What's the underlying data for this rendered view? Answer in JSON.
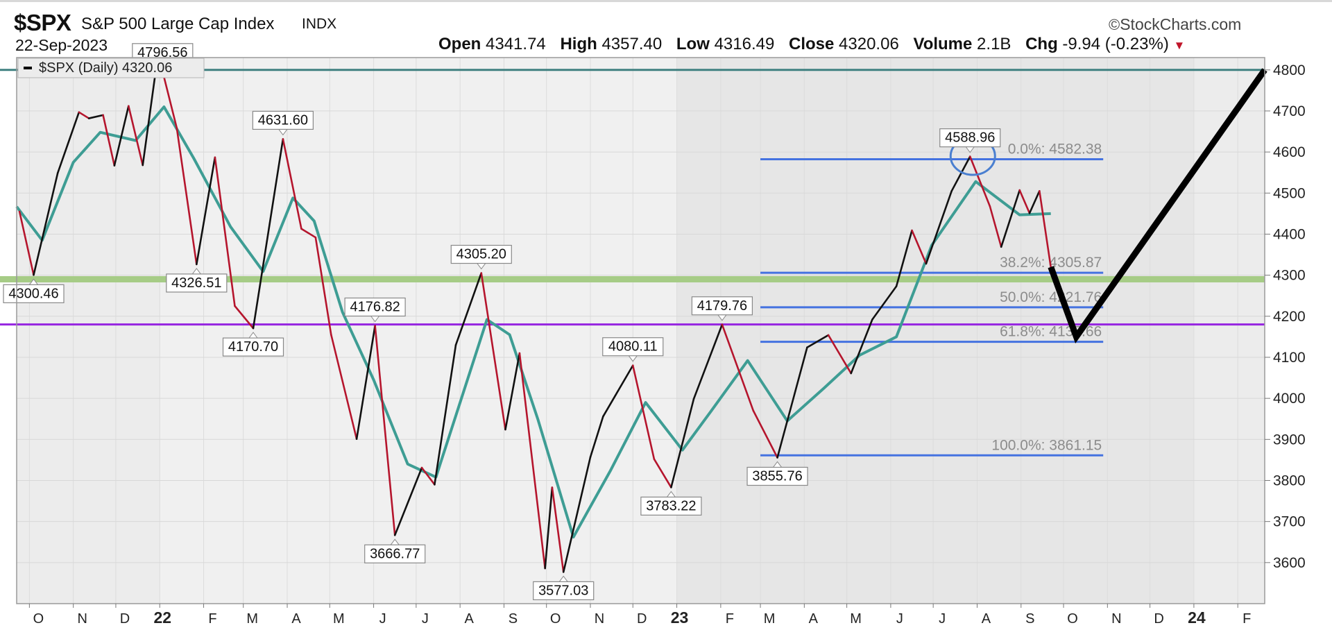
{
  "header": {
    "symbol": "$SPX",
    "name": "S&P 500 Large Cap Index",
    "exchange": "INDX",
    "date": "22-Sep-2023",
    "brand": "StockCharts.com",
    "brand_symbol": "©",
    "open_label": "Open",
    "open": "4341.74",
    "high_label": "High",
    "high": "4357.40",
    "low_label": "Low",
    "low": "4316.49",
    "close_label": "Close",
    "close": "4320.06",
    "volume_label": "Volume",
    "volume": "2.1B",
    "chg_label": "Chg",
    "chg": "-9.94 (-0.23%)",
    "chg_arrow": "▼"
  },
  "chart_data": {
    "type": "line",
    "legend": {
      "text": "$SPX (Daily) 4320.06",
      "placement": "top-left"
    },
    "y_axis": {
      "side": "right",
      "ticks": [
        3600,
        3700,
        3800,
        3900,
        4000,
        4100,
        4200,
        4300,
        4400,
        4500,
        4600,
        4700,
        4800
      ],
      "range": [
        3500,
        4830
      ]
    },
    "x_axis": {
      "ticks": [
        "O",
        "N",
        "D",
        "22",
        "F",
        "M",
        "A",
        "M",
        "J",
        "J",
        "A",
        "S",
        "O",
        "N",
        "D",
        "23",
        "F",
        "M",
        "A",
        "M",
        "J",
        "J",
        "A",
        "S",
        "O",
        "N",
        "D",
        "24",
        "F"
      ],
      "year_ticks": [
        "22",
        "23",
        "24"
      ],
      "range": [
        "2021-09-22",
        "2024-02-20"
      ]
    },
    "grid": true,
    "series": [
      {
        "name": "$SPX (Daily)",
        "color_up": "#111111",
        "color_down": "#b5152d",
        "points": [
          [
            "2021-09-24",
            4455
          ],
          [
            "2021-10-04",
            4300.46
          ],
          [
            "2021-10-21",
            4549
          ],
          [
            "2021-11-05",
            4697
          ],
          [
            "2021-11-12",
            4682
          ],
          [
            "2021-11-22",
            4690
          ],
          [
            "2021-11-30",
            4567
          ],
          [
            "2021-12-10",
            4712
          ],
          [
            "2021-12-20",
            4568
          ],
          [
            "2021-12-29",
            4793
          ],
          [
            "2022-01-03",
            4796.56
          ],
          [
            "2022-01-13",
            4659
          ],
          [
            "2022-01-27",
            4326.51
          ],
          [
            "2022-02-09",
            4587
          ],
          [
            "2022-02-23",
            4225
          ],
          [
            "2022-03-08",
            4170.7
          ],
          [
            "2022-03-29",
            4631.6
          ],
          [
            "2022-04-11",
            4413
          ],
          [
            "2022-04-21",
            4392
          ],
          [
            "2022-05-02",
            4155
          ],
          [
            "2022-05-20",
            3901
          ],
          [
            "2022-06-02",
            4176.82
          ],
          [
            "2022-06-16",
            3666.77
          ],
          [
            "2022-07-05",
            3831
          ],
          [
            "2022-07-14",
            3790
          ],
          [
            "2022-07-29",
            4130
          ],
          [
            "2022-08-16",
            4305.2
          ],
          [
            "2022-09-02",
            3924
          ],
          [
            "2022-09-12",
            4110
          ],
          [
            "2022-09-30",
            3586
          ],
          [
            "2022-10-05",
            3783
          ],
          [
            "2022-10-13",
            3577.03
          ],
          [
            "2022-11-01",
            3857
          ],
          [
            "2022-11-10",
            3956
          ],
          [
            "2022-12-01",
            4080.11
          ],
          [
            "2022-12-16",
            3852
          ],
          [
            "2022-12-28",
            3783.22
          ],
          [
            "2023-01-13",
            3999
          ],
          [
            "2023-02-02",
            4179.76
          ],
          [
            "2023-02-24",
            3970
          ],
          [
            "2023-03-13",
            3855.76
          ],
          [
            "2023-04-03",
            4124
          ],
          [
            "2023-04-18",
            4154
          ],
          [
            "2023-05-04",
            4061
          ],
          [
            "2023-05-19",
            4192
          ],
          [
            "2023-06-05",
            4273
          ],
          [
            "2023-06-16",
            4409
          ],
          [
            "2023-06-26",
            4328
          ],
          [
            "2023-07-14",
            4505
          ],
          [
            "2023-07-27",
            4588.96
          ],
          [
            "2023-08-10",
            4468
          ],
          [
            "2023-08-18",
            4369
          ],
          [
            "2023-08-31",
            4507
          ],
          [
            "2023-09-07",
            4451
          ],
          [
            "2023-09-14",
            4505
          ],
          [
            "2023-09-22",
            4320.06
          ]
        ]
      },
      {
        "name": "Moving Average",
        "color": "#3e9d94",
        "points": [
          [
            "2021-09-22",
            4467
          ],
          [
            "2021-10-10",
            4385
          ],
          [
            "2021-11-01",
            4575
          ],
          [
            "2021-11-20",
            4648
          ],
          [
            "2021-12-15",
            4628
          ],
          [
            "2022-01-04",
            4710
          ],
          [
            "2022-01-25",
            4585
          ],
          [
            "2022-02-20",
            4418
          ],
          [
            "2022-03-15",
            4309
          ],
          [
            "2022-04-05",
            4488
          ],
          [
            "2022-04-20",
            4432
          ],
          [
            "2022-05-10",
            4210
          ],
          [
            "2022-06-01",
            4045
          ],
          [
            "2022-06-25",
            3840
          ],
          [
            "2022-07-15",
            3808
          ],
          [
            "2022-08-20",
            4192
          ],
          [
            "2022-09-05",
            4155
          ],
          [
            "2022-09-25",
            3948
          ],
          [
            "2022-10-20",
            3662
          ],
          [
            "2022-11-15",
            3823
          ],
          [
            "2022-12-10",
            3990
          ],
          [
            "2023-01-05",
            3874
          ],
          [
            "2023-01-25",
            3968
          ],
          [
            "2023-02-20",
            4092
          ],
          [
            "2023-03-20",
            3945
          ],
          [
            "2023-04-15",
            4025
          ],
          [
            "2023-05-10",
            4105
          ],
          [
            "2023-06-05",
            4150
          ],
          [
            "2023-06-30",
            4373
          ],
          [
            "2023-07-31",
            4528
          ],
          [
            "2023-08-31",
            4447
          ],
          [
            "2023-09-22",
            4450
          ]
        ]
      },
      {
        "name": "Projection",
        "color": "#000000",
        "points": [
          [
            "2023-09-22",
            4320
          ],
          [
            "2023-10-10",
            4150
          ],
          [
            "2024-02-20",
            4800
          ]
        ]
      }
    ],
    "horizontal_lines": [
      {
        "value": 4800,
        "color": "#3f8080"
      },
      {
        "value": 4290,
        "color": "#a6cc86"
      },
      {
        "value": 4180,
        "color": "#9624e0"
      }
    ],
    "fibonacci": {
      "color": "#4472e0",
      "start": "2023-03-01",
      "end": "2023-10-29",
      "levels": [
        {
          "value": 4582.38,
          "label": "0.0%: 4582.38"
        },
        {
          "value": 4305.87,
          "label": "38.2%: 4305.87"
        },
        {
          "value": 4221.76,
          "label": "50.0%: 4221.76"
        },
        {
          "value": 4137.66,
          "label": "61.8%: 4137.66"
        },
        {
          "value": 3861.15,
          "label": "100.0%: 3861.15"
        }
      ]
    },
    "price_labels": [
      {
        "date": "2021-10-04",
        "value": 4300.46,
        "text": "4300.46",
        "pos": "below"
      },
      {
        "date": "2022-01-03",
        "value": 4796.56,
        "text": "4796.56",
        "pos": "above"
      },
      {
        "date": "2022-01-27",
        "value": 4326.51,
        "text": "4326.51",
        "pos": "below"
      },
      {
        "date": "2022-03-08",
        "value": 4170.7,
        "text": "4170.70",
        "pos": "below"
      },
      {
        "date": "2022-03-29",
        "value": 4631.6,
        "text": "4631.60",
        "pos": "above"
      },
      {
        "date": "2022-06-02",
        "value": 4176.82,
        "text": "4176.82",
        "pos": "above"
      },
      {
        "date": "2022-06-16",
        "value": 3666.77,
        "text": "3666.77",
        "pos": "below"
      },
      {
        "date": "2022-08-16",
        "value": 4305.2,
        "text": "4305.20",
        "pos": "above"
      },
      {
        "date": "2022-10-13",
        "value": 3577.03,
        "text": "3577.03",
        "pos": "below"
      },
      {
        "date": "2022-12-01",
        "value": 4080.11,
        "text": "4080.11",
        "pos": "above"
      },
      {
        "date": "2022-12-28",
        "value": 3783.22,
        "text": "3783.22",
        "pos": "below"
      },
      {
        "date": "2023-02-02",
        "value": 4179.76,
        "text": "4179.76",
        "pos": "above"
      },
      {
        "date": "2023-03-13",
        "value": 3855.76,
        "text": "3855.76",
        "pos": "below"
      },
      {
        "date": "2023-07-27",
        "value": 4588.96,
        "text": "4588.96",
        "pos": "above"
      }
    ],
    "annotation_circle": {
      "date": "2023-07-27",
      "value": 4590,
      "color": "#4a7fd0"
    }
  }
}
